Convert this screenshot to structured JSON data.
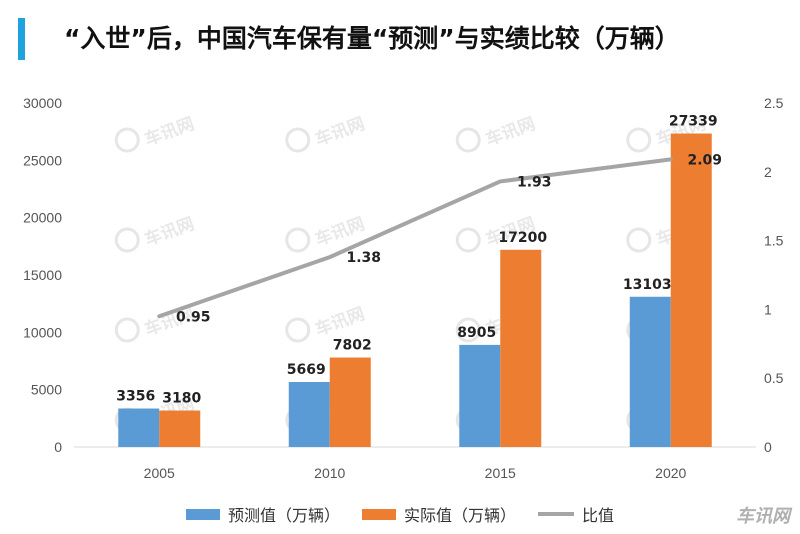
{
  "title": "“入世”后，中国汽车保有量“预测”与实绩比较（万辆）",
  "watermark": "车讯网",
  "colors": {
    "accent": "#1fa3de",
    "forecast": "#5b9bd5",
    "actual": "#ed7d31",
    "ratio": "#a5a5a5"
  },
  "chart_data": {
    "type": "bar",
    "categories": [
      "2005",
      "2010",
      "2015",
      "2020"
    ],
    "series": [
      {
        "name": "预测值（万辆）",
        "kind": "bar",
        "axis": "left",
        "values": [
          3356,
          5669,
          8905,
          13103
        ]
      },
      {
        "name": "实际值（万辆）",
        "kind": "bar",
        "axis": "left",
        "values": [
          3180,
          7802,
          17200,
          27339
        ]
      },
      {
        "name": "比值",
        "kind": "line",
        "axis": "right",
        "values": [
          0.95,
          1.38,
          1.93,
          2.09
        ]
      }
    ],
    "ylim": [
      0,
      30000
    ],
    "yticks": [
      "0",
      "5000",
      "10000",
      "15000",
      "20000",
      "25000",
      "30000"
    ],
    "y2lim": [
      0,
      2.5
    ],
    "y2ticks": [
      "0",
      "0.5",
      "1",
      "1.5",
      "2",
      "2.5"
    ],
    "legend": "bottom",
    "grid": false
  }
}
